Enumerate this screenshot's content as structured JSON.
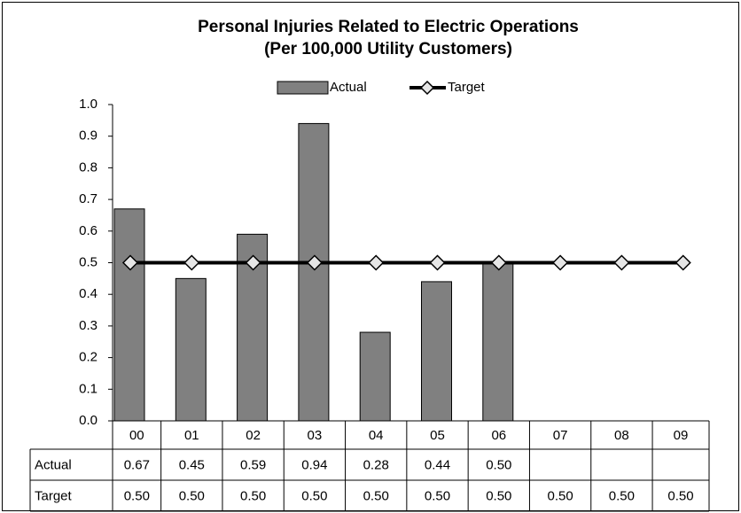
{
  "chart_data": {
    "type": "bar",
    "title": "Personal Injuries Related to Electric Operations",
    "subtitle": "(Per 100,000 Utility Customers)",
    "categories": [
      "00",
      "01",
      "02",
      "03",
      "04",
      "05",
      "06",
      "07",
      "08",
      "09"
    ],
    "series": [
      {
        "name": "Actual",
        "type": "bar",
        "color": "#808080",
        "values": [
          0.67,
          0.45,
          0.59,
          0.94,
          0.28,
          0.44,
          0.5,
          null,
          null,
          null
        ],
        "value_labels": [
          "0.67",
          "0.45",
          "0.59",
          "0.94",
          "0.28",
          "0.44",
          "0.50",
          null,
          null,
          null
        ]
      },
      {
        "name": "Target",
        "type": "line",
        "color": "#000000",
        "values": [
          0.5,
          0.5,
          0.5,
          0.5,
          0.5,
          0.5,
          0.5,
          0.5,
          0.5,
          0.5
        ],
        "value_labels": [
          "0.50",
          "0.50",
          "0.50",
          "0.50",
          "0.50",
          "0.50",
          "0.50",
          "0.50",
          "0.50",
          "0.50"
        ]
      }
    ],
    "ylim": [
      0,
      1
    ],
    "yticks": [
      {
        "value": 0,
        "label": "0.0"
      },
      0.1,
      0.2,
      0.3,
      0.4,
      0.5,
      0.6,
      0.7,
      0.8,
      0.9,
      {
        "value": 1,
        "label": "1.0"
      }
    ],
    "grid": false,
    "legend": "top",
    "data_table": true
  }
}
